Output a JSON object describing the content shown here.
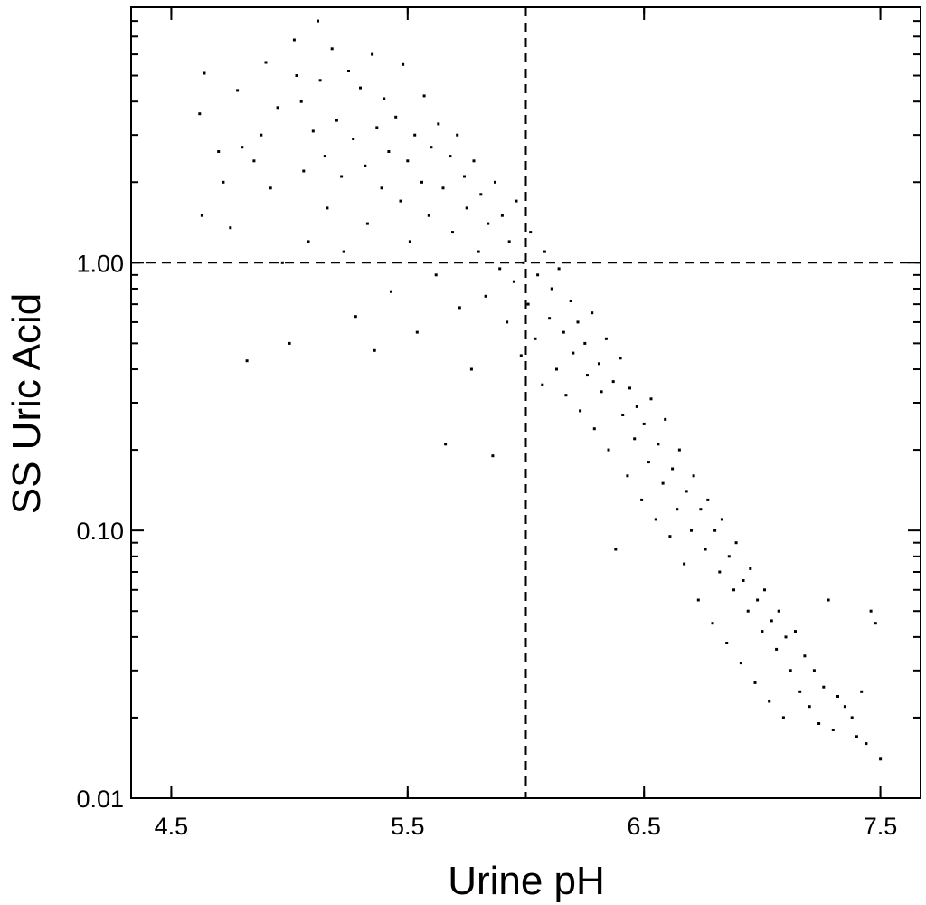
{
  "chart_data": {
    "type": "scatter",
    "title": "",
    "xlabel": "Urine pH",
    "ylabel": "SS Uric Acid",
    "xlim": [
      4.33,
      7.67
    ],
    "ylim": [
      0.01,
      9.0
    ],
    "yscale": "log",
    "x_ticks": [
      {
        "value": 4.5,
        "label": "4.5"
      },
      {
        "value": 5.5,
        "label": "5.5"
      },
      {
        "value": 6.5,
        "label": "6.5"
      },
      {
        "value": 7.5,
        "label": "7.5"
      }
    ],
    "y_ticks": [
      {
        "value": 0.01,
        "label": "0.01"
      },
      {
        "value": 0.1,
        "label": "0.10"
      },
      {
        "value": 1.0,
        "label": "1.00"
      }
    ],
    "reference_lines": [
      {
        "orientation": "vertical",
        "value": 6.0,
        "style": "dashed"
      },
      {
        "orientation": "horizontal",
        "value": 1.0,
        "style": "dashed"
      }
    ],
    "grid": false,
    "legend": "none",
    "marker_color": "#000000",
    "series": [
      {
        "points": [
          [
            4.62,
            3.6
          ],
          [
            4.63,
            1.5
          ],
          [
            4.64,
            5.1
          ],
          [
            4.7,
            2.6
          ],
          [
            4.72,
            2.0
          ],
          [
            4.75,
            1.35
          ],
          [
            4.78,
            4.4
          ],
          [
            4.8,
            2.7
          ],
          [
            4.82,
            0.43
          ],
          [
            4.85,
            2.4
          ],
          [
            4.88,
            3.0
          ],
          [
            4.9,
            5.6
          ],
          [
            4.92,
            1.9
          ],
          [
            4.95,
            3.8
          ],
          [
            4.97,
            1.0
          ],
          [
            5.0,
            0.5
          ],
          [
            5.02,
            6.8
          ],
          [
            5.03,
            5.0
          ],
          [
            5.05,
            4.0
          ],
          [
            5.06,
            2.2
          ],
          [
            5.08,
            1.2
          ],
          [
            5.1,
            3.1
          ],
          [
            5.12,
            8.0
          ],
          [
            5.13,
            4.8
          ],
          [
            5.15,
            2.5
          ],
          [
            5.16,
            1.6
          ],
          [
            5.18,
            6.3
          ],
          [
            5.2,
            3.4
          ],
          [
            5.22,
            2.1
          ],
          [
            5.23,
            1.1
          ],
          [
            5.25,
            5.2
          ],
          [
            5.27,
            2.9
          ],
          [
            5.28,
            0.63
          ],
          [
            5.3,
            4.5
          ],
          [
            5.32,
            2.3
          ],
          [
            5.33,
            1.4
          ],
          [
            5.35,
            6.0
          ],
          [
            5.36,
            0.47
          ],
          [
            5.37,
            3.2
          ],
          [
            5.39,
            1.9
          ],
          [
            5.4,
            4.1
          ],
          [
            5.42,
            2.6
          ],
          [
            5.43,
            0.78
          ],
          [
            5.45,
            3.5
          ],
          [
            5.47,
            1.7
          ],
          [
            5.48,
            5.5
          ],
          [
            5.5,
            2.4
          ],
          [
            5.51,
            1.2
          ],
          [
            5.53,
            3.0
          ],
          [
            5.54,
            0.55
          ],
          [
            5.56,
            2.0
          ],
          [
            5.57,
            4.2
          ],
          [
            5.59,
            1.5
          ],
          [
            5.6,
            2.7
          ],
          [
            5.62,
            0.9
          ],
          [
            5.63,
            3.3
          ],
          [
            5.65,
            1.9
          ],
          [
            5.66,
            0.21
          ],
          [
            5.68,
            2.5
          ],
          [
            5.69,
            1.3
          ],
          [
            5.71,
            3.0
          ],
          [
            5.72,
            0.68
          ],
          [
            5.74,
            2.1
          ],
          [
            5.75,
            1.6
          ],
          [
            5.77,
            0.4
          ],
          [
            5.78,
            2.4
          ],
          [
            5.8,
            1.1
          ],
          [
            5.81,
            1.8
          ],
          [
            5.83,
            0.75
          ],
          [
            5.84,
            1.4
          ],
          [
            5.86,
            0.19
          ],
          [
            5.87,
            2.0
          ],
          [
            5.89,
            0.95
          ],
          [
            5.9,
            1.5
          ],
          [
            5.92,
            0.6
          ],
          [
            5.93,
            1.2
          ],
          [
            5.95,
            0.85
          ],
          [
            5.96,
            1.7
          ],
          [
            5.98,
            0.45
          ],
          [
            5.99,
            1.0
          ],
          [
            6.01,
            0.7
          ],
          [
            6.02,
            1.3
          ],
          [
            6.04,
            0.52
          ],
          [
            6.05,
            0.9
          ],
          [
            6.07,
            0.35
          ],
          [
            6.08,
            1.1
          ],
          [
            6.1,
            0.62
          ],
          [
            6.11,
            0.8
          ],
          [
            6.13,
            0.4
          ],
          [
            6.14,
            0.95
          ],
          [
            6.16,
            0.55
          ],
          [
            6.17,
            0.32
          ],
          [
            6.19,
            0.72
          ],
          [
            6.2,
            0.46
          ],
          [
            6.22,
            0.6
          ],
          [
            6.23,
            0.28
          ],
          [
            6.25,
            0.5
          ],
          [
            6.26,
            0.38
          ],
          [
            6.28,
            0.65
          ],
          [
            6.29,
            0.24
          ],
          [
            6.31,
            0.42
          ],
          [
            6.32,
            0.33
          ],
          [
            6.34,
            0.52
          ],
          [
            6.35,
            0.2
          ],
          [
            6.37,
            0.36
          ],
          [
            6.38,
            0.085
          ],
          [
            6.4,
            0.44
          ],
          [
            6.41,
            0.27
          ],
          [
            6.43,
            0.16
          ],
          [
            6.44,
            0.34
          ],
          [
            6.46,
            0.22
          ],
          [
            6.47,
            0.29
          ],
          [
            6.49,
            0.13
          ],
          [
            6.5,
            0.25
          ],
          [
            6.52,
            0.18
          ],
          [
            6.53,
            0.31
          ],
          [
            6.55,
            0.11
          ],
          [
            6.56,
            0.21
          ],
          [
            6.58,
            0.15
          ],
          [
            6.59,
            0.26
          ],
          [
            6.61,
            0.095
          ],
          [
            6.62,
            0.17
          ],
          [
            6.64,
            0.12
          ],
          [
            6.65,
            0.2
          ],
          [
            6.67,
            0.075
          ],
          [
            6.68,
            0.14
          ],
          [
            6.7,
            0.1
          ],
          [
            6.71,
            0.16
          ],
          [
            6.73,
            0.055
          ],
          [
            6.74,
            0.12
          ],
          [
            6.76,
            0.085
          ],
          [
            6.77,
            0.13
          ],
          [
            6.79,
            0.045
          ],
          [
            6.8,
            0.1
          ],
          [
            6.82,
            0.07
          ],
          [
            6.83,
            0.11
          ],
          [
            6.85,
            0.038
          ],
          [
            6.86,
            0.08
          ],
          [
            6.88,
            0.06
          ],
          [
            6.89,
            0.09
          ],
          [
            6.91,
            0.032
          ],
          [
            6.92,
            0.065
          ],
          [
            6.94,
            0.05
          ],
          [
            6.95,
            0.072
          ],
          [
            6.97,
            0.027
          ],
          [
            6.98,
            0.055
          ],
          [
            7.0,
            0.042
          ],
          [
            7.01,
            0.06
          ],
          [
            7.03,
            0.023
          ],
          [
            7.04,
            0.046
          ],
          [
            7.06,
            0.036
          ],
          [
            7.07,
            0.05
          ],
          [
            7.09,
            0.02
          ],
          [
            7.1,
            0.04
          ],
          [
            7.12,
            0.03
          ],
          [
            7.14,
            0.042
          ],
          [
            7.16,
            0.025
          ],
          [
            7.18,
            0.034
          ],
          [
            7.2,
            0.022
          ],
          [
            7.22,
            0.03
          ],
          [
            7.24,
            0.019
          ],
          [
            7.26,
            0.026
          ],
          [
            7.28,
            0.055
          ],
          [
            7.3,
            0.018
          ],
          [
            7.32,
            0.024
          ],
          [
            7.35,
            0.022
          ],
          [
            7.38,
            0.02
          ],
          [
            7.4,
            0.017
          ],
          [
            7.42,
            0.025
          ],
          [
            7.44,
            0.016
          ],
          [
            7.46,
            0.05
          ],
          [
            7.48,
            0.045
          ],
          [
            7.5,
            0.014
          ]
        ]
      }
    ]
  }
}
